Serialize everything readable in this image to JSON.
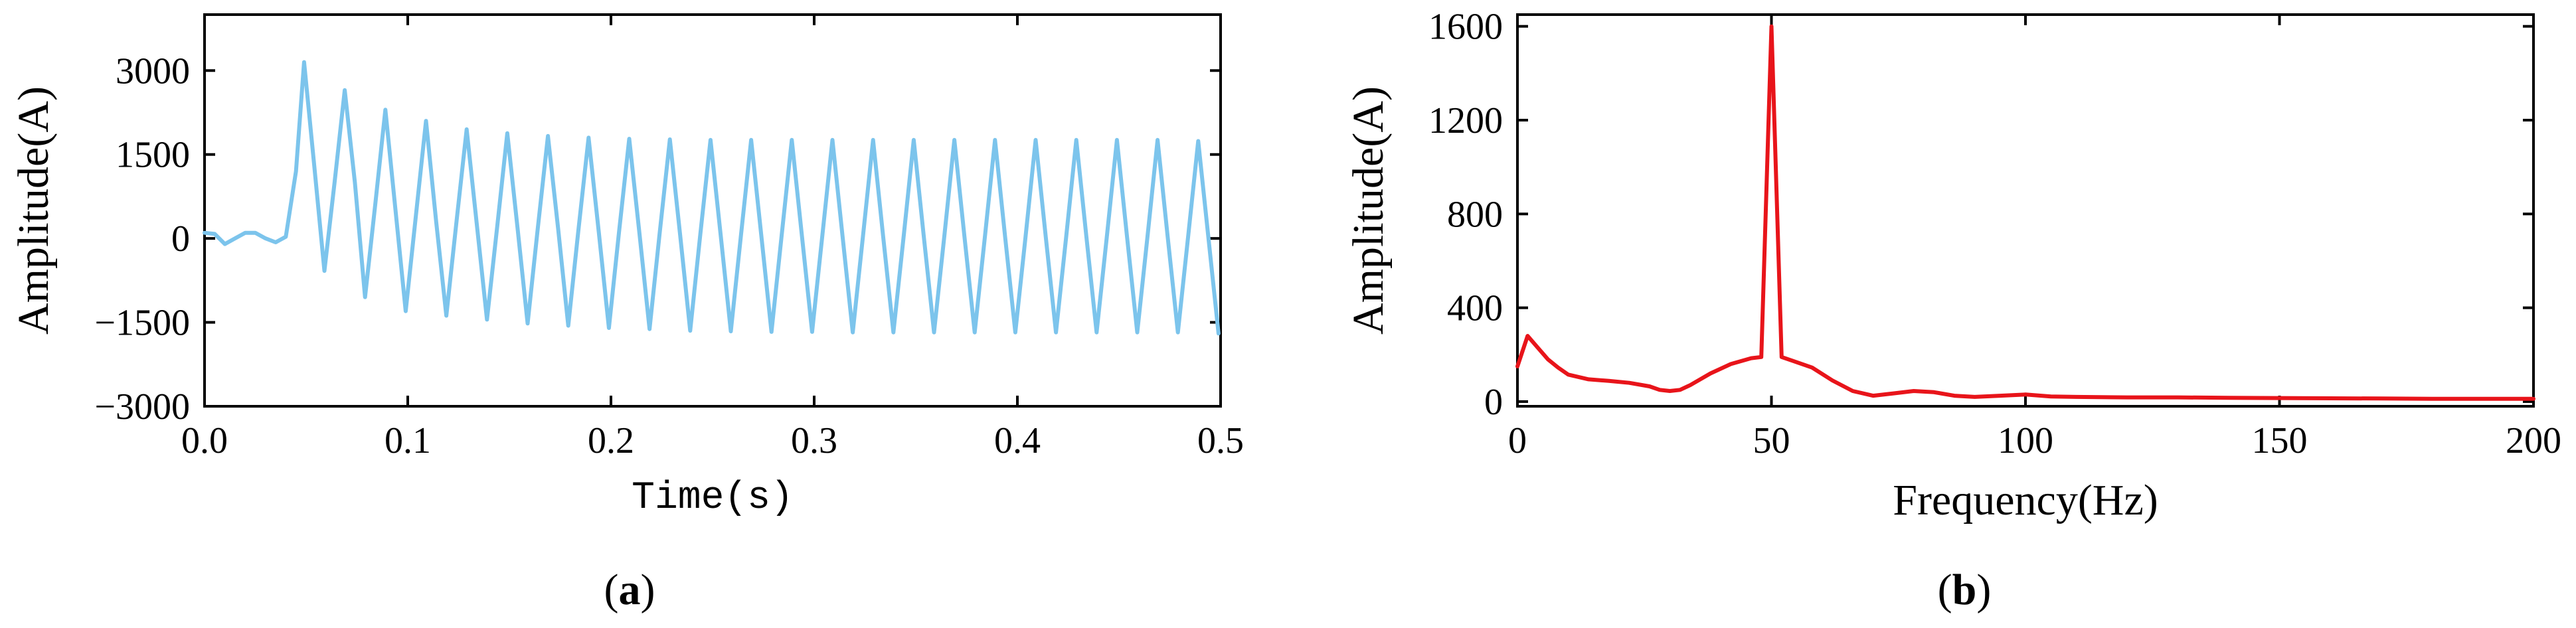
{
  "chart_data": [
    {
      "type": "line",
      "panel_label": "a",
      "xlabel": "Time(s)",
      "ylabel": "Amplitude(A)",
      "xlim": [
        0,
        0.5
      ],
      "ylim": [
        -3000,
        4000
      ],
      "xticks": [
        0.0,
        0.1,
        0.2,
        0.3,
        0.4,
        0.5
      ],
      "xtick_labels": [
        "0.0",
        "0.1",
        "0.2",
        "0.3",
        "0.4",
        "0.5"
      ],
      "yticks": [
        -3000,
        -1500,
        0,
        1500,
        3000
      ],
      "ytick_labels": [
        "−3000",
        "−1500",
        "0",
        "1500",
        "3000"
      ],
      "color": "#7cc4ec",
      "grid": false,
      "series": [
        {
          "x": [
            0.0,
            0.005,
            0.01,
            0.015,
            0.02,
            0.025,
            0.03,
            0.035,
            0.04,
            0.045,
            0.049,
            0.054,
            0.059,
            0.064,
            0.069,
            0.074,
            0.079,
            0.084,
            0.089,
            0.094,
            0.099,
            0.104,
            0.109,
            0.114,
            0.119,
            0.124,
            0.129,
            0.134,
            0.139,
            0.144,
            0.149,
            0.154,
            0.159,
            0.164,
            0.169,
            0.174,
            0.179,
            0.184,
            0.189,
            0.194,
            0.199,
            0.204,
            0.209,
            0.214,
            0.219,
            0.224,
            0.229,
            0.234,
            0.239,
            0.244,
            0.249,
            0.254,
            0.259,
            0.264,
            0.269,
            0.274,
            0.279,
            0.284,
            0.289,
            0.294,
            0.299,
            0.304,
            0.309,
            0.314,
            0.319,
            0.324,
            0.329,
            0.334,
            0.339,
            0.344,
            0.349,
            0.354,
            0.359,
            0.364,
            0.369,
            0.374,
            0.379,
            0.384,
            0.389,
            0.394,
            0.399,
            0.404,
            0.409,
            0.414,
            0.419,
            0.424,
            0.429,
            0.434,
            0.439,
            0.444,
            0.449,
            0.454,
            0.459,
            0.464,
            0.469,
            0.474,
            0.479,
            0.484,
            0.489,
            0.494,
            0.499
          ],
          "y": [
            100,
            80,
            -100,
            0,
            100,
            100,
            0,
            -70,
            30,
            1200,
            3150,
            1300,
            -580,
            1000,
            2650,
            1000,
            -1050,
            600,
            2300,
            500,
            -1300,
            400,
            2100,
            300,
            -1380,
            300,
            1950,
            250,
            -1450,
            200,
            1880,
            200,
            -1520,
            180,
            1830,
            180,
            -1560,
            150,
            1800,
            120,
            -1600,
            120,
            1780,
            100,
            -1620,
            100,
            1770,
            80,
            -1650,
            80,
            1760,
            60,
            -1660,
            60,
            1760,
            50,
            -1670,
            50,
            1760,
            40,
            -1670,
            40,
            1760,
            30,
            -1680,
            30,
            1760,
            20,
            -1680,
            20,
            1760,
            20,
            -1680,
            20,
            1760,
            20,
            -1680,
            20,
            1760,
            20,
            -1680,
            20,
            1760,
            20,
            -1680,
            20,
            1760,
            20,
            -1680,
            20,
            1760,
            20,
            -1680,
            20,
            1760,
            20,
            -1680,
            20,
            1740,
            20,
            -1700
          ]
        }
      ]
    },
    {
      "type": "line",
      "panel_label": "b",
      "xlabel": "Frequency(Hz)",
      "ylabel": "Amplitude(A)",
      "xlim": [
        0,
        200
      ],
      "ylim": [
        -20,
        1650
      ],
      "xticks": [
        0,
        50,
        100,
        150,
        200
      ],
      "xtick_labels": [
        "0",
        "50",
        "100",
        "150",
        "200"
      ],
      "yticks": [
        0,
        400,
        800,
        1200,
        1600
      ],
      "ytick_labels": [
        "0",
        "400",
        "800",
        "1200",
        "1600"
      ],
      "color": "#e8141a",
      "grid": false,
      "series": [
        {
          "x": [
            0,
            2,
            4,
            6,
            8,
            10,
            14,
            18,
            22,
            26,
            28,
            30,
            32,
            34,
            38,
            42,
            46,
            48,
            50,
            52,
            54,
            58,
            62,
            66,
            70,
            74,
            78,
            82,
            86,
            90,
            95,
            100,
            105,
            110,
            120,
            130,
            140,
            150,
            160,
            170,
            180,
            190,
            200
          ],
          "y": [
            150,
            280,
            230,
            180,
            145,
            115,
            95,
            88,
            80,
            65,
            50,
            45,
            50,
            70,
            120,
            160,
            185,
            190,
            1600,
            190,
            175,
            145,
            90,
            45,
            25,
            35,
            45,
            40,
            25,
            20,
            25,
            30,
            22,
            20,
            18,
            18,
            16,
            15,
            14,
            13,
            12,
            12,
            12
          ]
        }
      ]
    }
  ]
}
